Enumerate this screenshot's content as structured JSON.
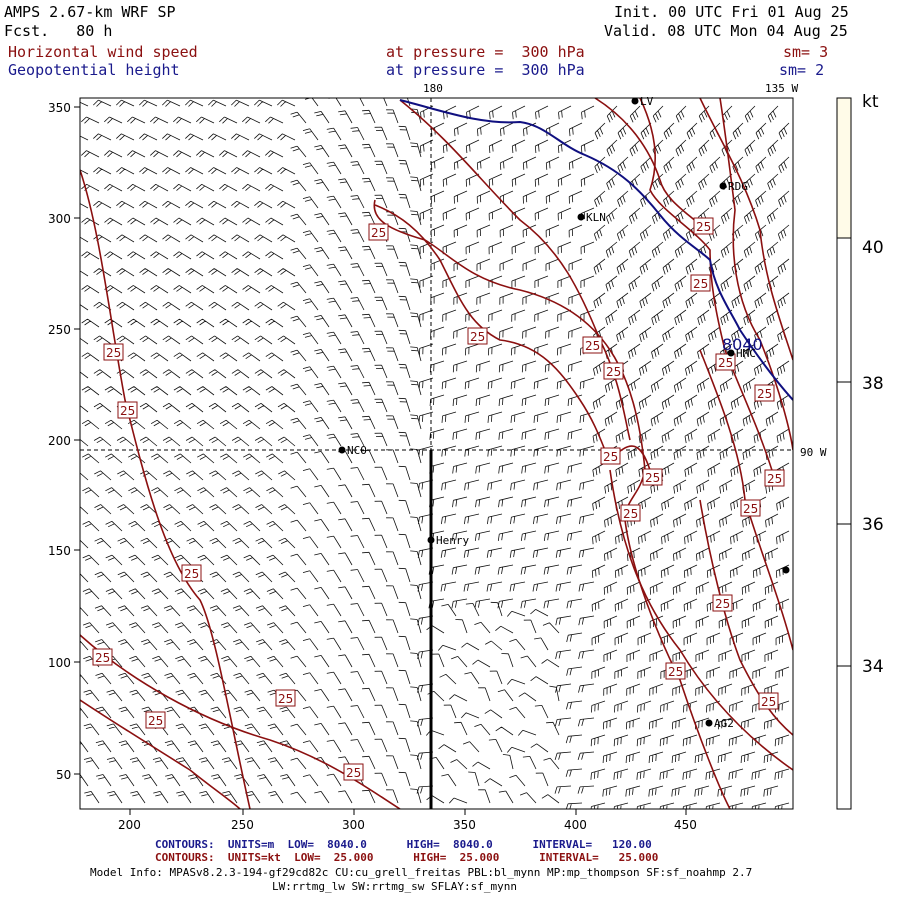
{
  "header": {
    "model": "AMPS 2.67-km WRF SP",
    "fcst": "Fcst.   80 h",
    "init": "Init. 00 UTC Fri 01 Aug 25",
    "valid": "Valid. 08 UTC Mon 04 Aug 25",
    "field1": "Horizontal wind speed",
    "field1_level": "at pressure =  300 hPa",
    "field1_sm": "sm= 3",
    "field2": "Geopotential height",
    "field2_level": "at pressure =  300 hPa",
    "field2_sm": "sm= 2"
  },
  "map": {
    "meridian_180": "180",
    "meridian_135w": "135 W",
    "parallel_90w": "90 W",
    "x_ticks": [
      "200",
      "250",
      "300",
      "350",
      "400",
      "450"
    ],
    "y_ticks": [
      "50",
      "100",
      "150",
      "200",
      "250",
      "300",
      "350"
    ],
    "stations": [
      {
        "name": "RDG"
      },
      {
        "name": "KLN"
      },
      {
        "name": "HMC"
      },
      {
        "name": "NCO"
      },
      {
        "name": "Henry"
      },
      {
        "name": "AG2"
      },
      {
        "name": "LV"
      }
    ],
    "height_contour_label": "8040",
    "speed_contour_label": "25"
  },
  "colorbar": {
    "unit": "kt",
    "labels": [
      "40",
      "38",
      "36",
      "34"
    ],
    "colors": {
      "low": "#ffffff",
      "high": "#fffbe8"
    }
  },
  "footer": {
    "line1": "CONTOURS:  UNITS=m  LOW=  8040.0      HIGH=  8040.0      INTERVAL=   120.00",
    "line2": "CONTOURS:  UNITS=kt  LOW=  25.000      HIGH=  25.000      INTERVAL=   25.000",
    "line3": "Model Info: MPASv8.2.3-194-gf29cd82c CU:cu_grell_freitas PBL:bl_mynn MP:mp_thompson SF:sf_noahmp 2.7",
    "line4": "LW:rrtmg_lw SW:rrtmg_sw SFLAY:sf_mynn"
  },
  "colors": {
    "speed_contour": "#8b1010",
    "height_contour": "#101080",
    "text": "#000000"
  }
}
